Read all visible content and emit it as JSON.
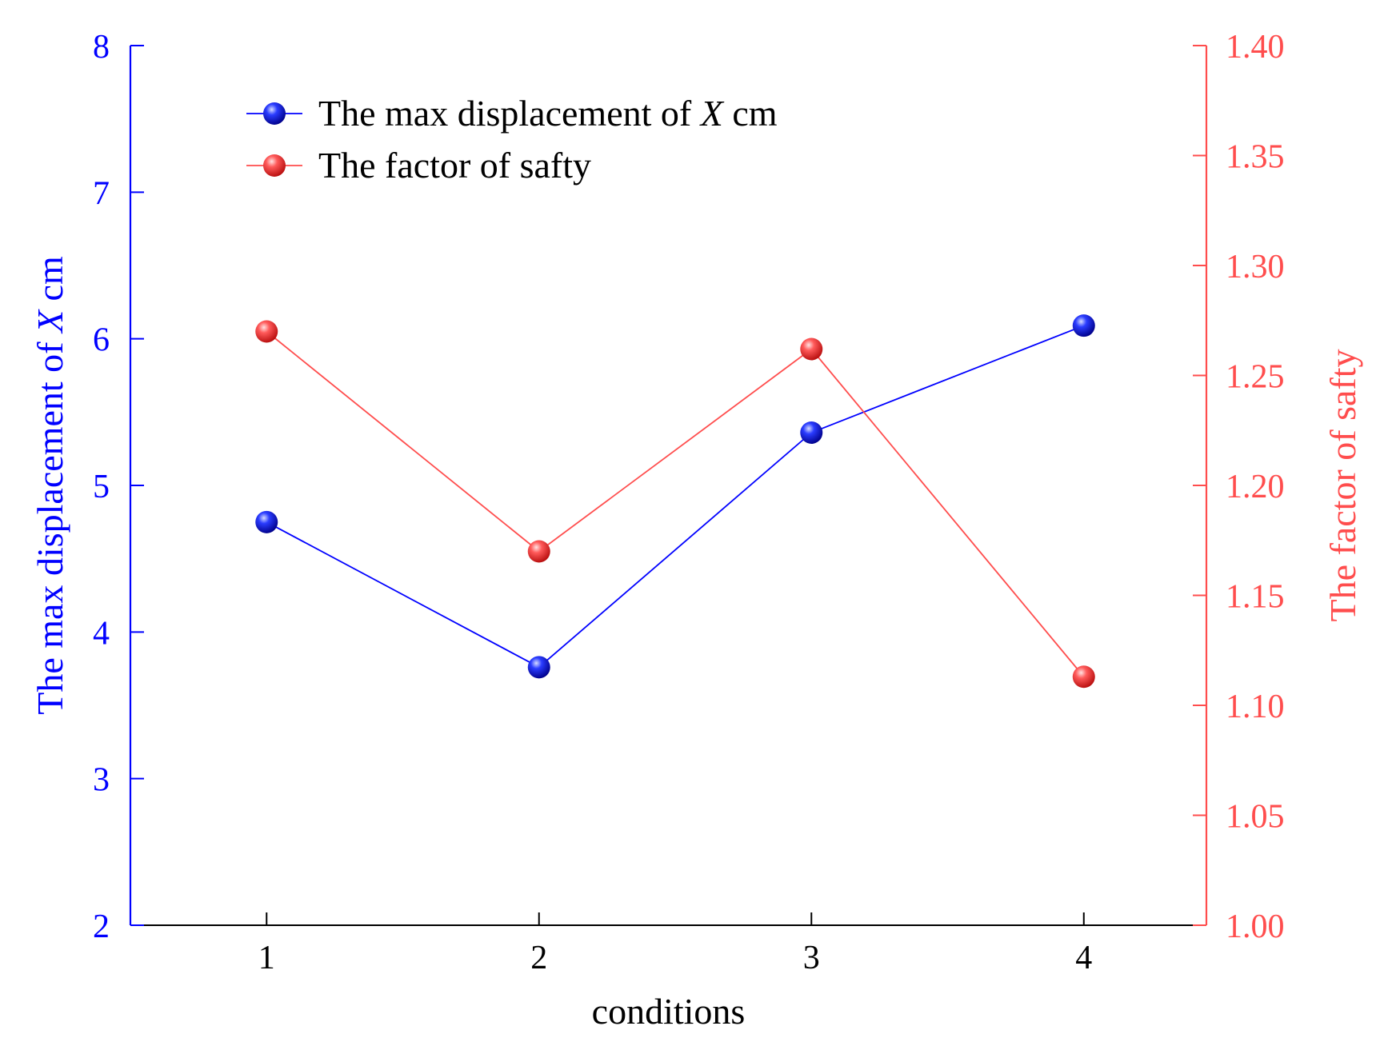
{
  "chart_data": {
    "type": "line",
    "title": "",
    "xlabel": "conditions",
    "categories": [
      "1",
      "2",
      "3",
      "4"
    ],
    "x": [
      1,
      2,
      3,
      4
    ],
    "xlim": [
      0.5,
      4.45
    ],
    "legend_position": "top-left",
    "series": [
      {
        "name": "The max displacement of X cm",
        "legend_prefix": "The max displacement of ",
        "legend_italic": "X",
        "legend_suffix": " cm",
        "axis": "left",
        "color": "#0000ff",
        "values": [
          4.75,
          3.76,
          5.36,
          6.09
        ]
      },
      {
        "name": "The factor of safty",
        "legend_prefix": "The factor of safty",
        "legend_italic": "",
        "legend_suffix": "",
        "axis": "right",
        "color": "#ff4d4d",
        "values": [
          1.27,
          1.17,
          1.262,
          1.113
        ]
      }
    ],
    "y_left": {
      "label_prefix": "The max displacement of ",
      "label_italic": "X",
      "label_suffix": " cm",
      "ylim": [
        2,
        8
      ],
      "ticks": [
        "2",
        "3",
        "4",
        "5",
        "6",
        "7",
        "8"
      ],
      "color": "#0000ff"
    },
    "y_right": {
      "label": "The factor of safty",
      "ylim": [
        1.0,
        1.4
      ],
      "ticks": [
        "1.00",
        "1.05",
        "1.10",
        "1.15",
        "1.20",
        "1.25",
        "1.30",
        "1.35",
        "1.40"
      ],
      "color": "#ff4d4d"
    }
  }
}
